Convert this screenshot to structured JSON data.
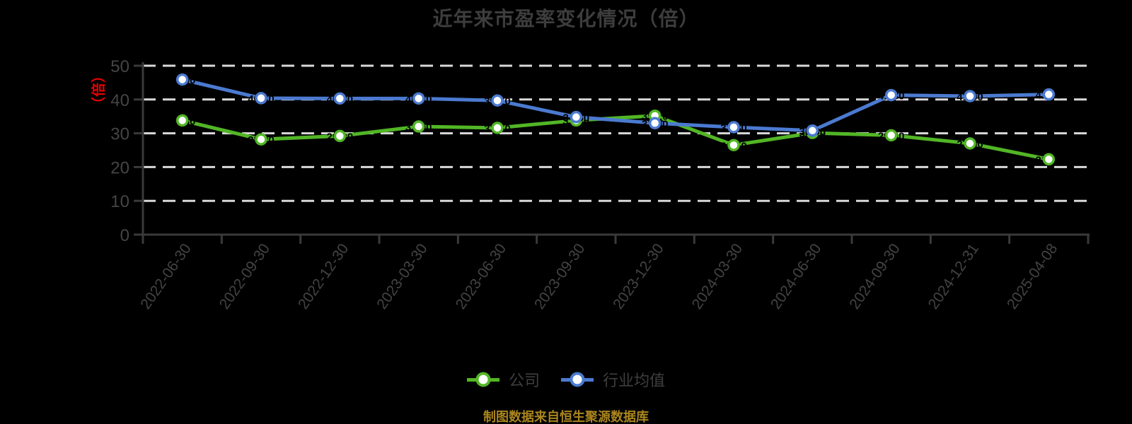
{
  "title": "近年来市盈率变化情况（倍）",
  "y_axis": {
    "unit_label": "（倍）",
    "unit_color": "#e60000",
    "tick_labels": [
      "0",
      "10",
      "20",
      "30",
      "40",
      "50"
    ]
  },
  "legend": {
    "items": [
      {
        "label": "公司",
        "color": "#52b626"
      },
      {
        "label": "行业均值",
        "color": "#4b7ad0"
      }
    ]
  },
  "footer": {
    "text": "制图数据来自恒生聚源数据库",
    "color": "#aa851e"
  },
  "chart_data": {
    "type": "line",
    "title": "近年来市盈率变化情况（倍）",
    "categories": [
      "2022-06-30",
      "2022-09-30",
      "2022-12-30",
      "2023-03-30",
      "2023-06-30",
      "2023-09-30",
      "2023-12-30",
      "2024-03-30",
      "2024-06-30",
      "2024-09-30",
      "2024-12-31",
      "2025-04-08"
    ],
    "series": [
      {
        "name": "公司",
        "color": "#52b626",
        "marker": "circle-white-fill",
        "values": [
          33.8,
          28.2,
          29.2,
          32.0,
          31.6,
          33.8,
          35.2,
          26.5,
          30.1,
          29.4,
          27.0,
          22.3
        ]
      },
      {
        "name": "行业均值",
        "color": "#4b7ad0",
        "marker": "circle-white-fill",
        "values": [
          45.9,
          40.4,
          40.3,
          40.3,
          39.7,
          34.8,
          33.0,
          31.8,
          30.8,
          41.3,
          41.0,
          41.5
        ]
      }
    ],
    "ylim": [
      0,
      50
    ],
    "y_ticks": [
      0,
      10,
      20,
      30,
      40,
      50
    ],
    "grid": "horizontal-dashed",
    "grid_color": "#d9d9d9",
    "axis_color": "#3a3a3a",
    "background": "#000000",
    "legend_position": "bottom-center",
    "x_label_rotation": -55,
    "point_label_color": "#000000"
  }
}
